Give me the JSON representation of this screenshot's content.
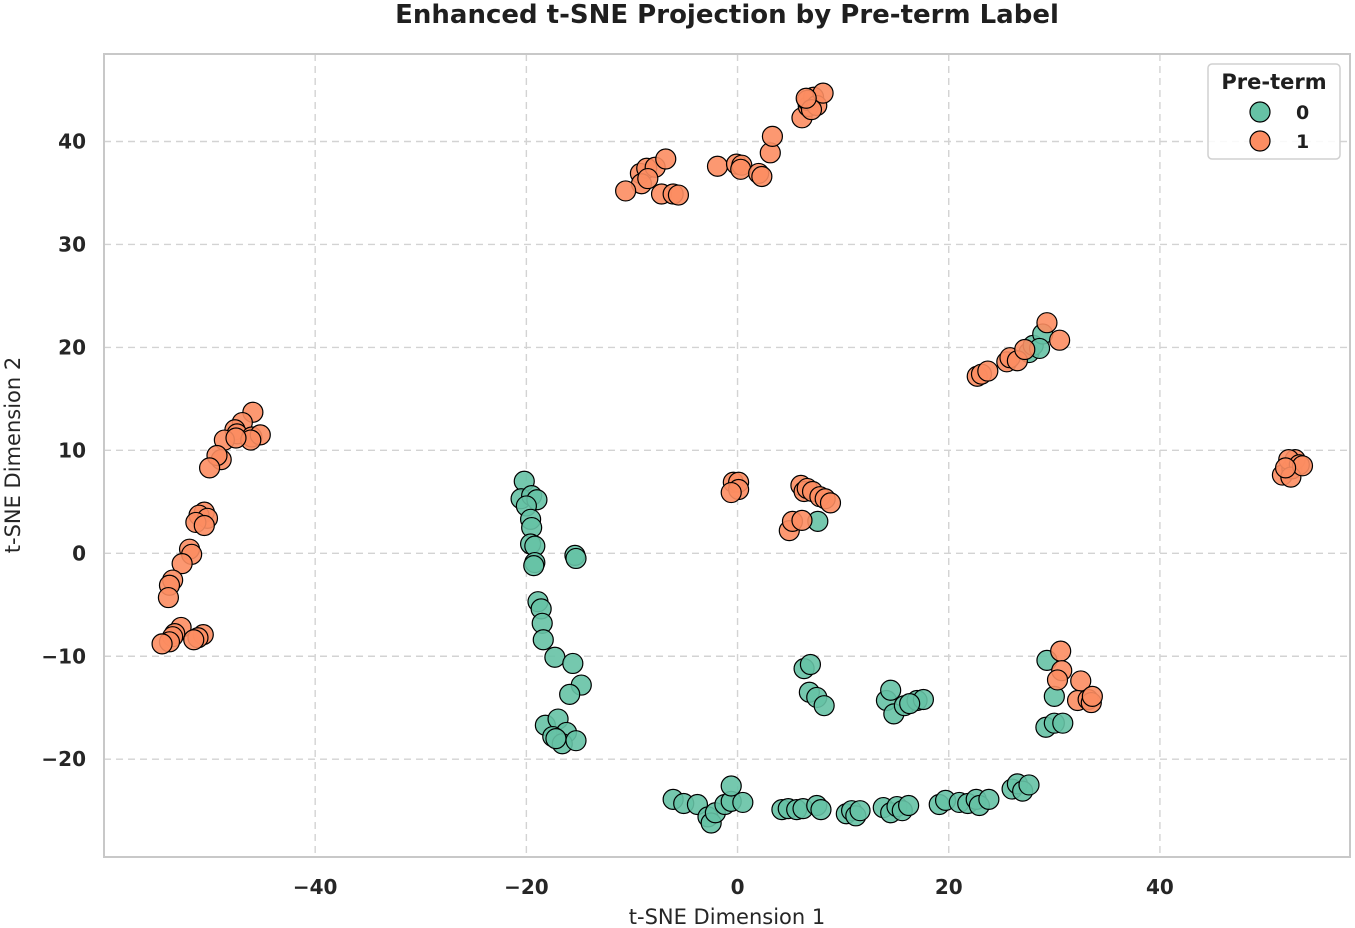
{
  "chart_data": {
    "type": "scatter",
    "title": "Enhanced t-SNE Projection by Pre-term Label",
    "xlabel": "t-SNE Dimension 1",
    "ylabel": "t-SNE Dimension 2",
    "xlim": [
      -60,
      58
    ],
    "ylim": [
      -29.5,
      48.5
    ],
    "xticks": [
      -40,
      -20,
      0,
      20,
      40
    ],
    "yticks": [
      -20,
      -10,
      0,
      10,
      20,
      30,
      40
    ],
    "grid": true,
    "legend": {
      "title": "Pre-term",
      "placement": "top-right"
    },
    "series": [
      {
        "name": "0",
        "color": "#66c2a5",
        "points": [
          [
            -20.2,
            7.0
          ],
          [
            -20.5,
            5.3
          ],
          [
            -19.5,
            5.6
          ],
          [
            -19.0,
            5.2
          ],
          [
            -20.0,
            4.6
          ],
          [
            -19.6,
            3.3
          ],
          [
            -19.5,
            2.5
          ],
          [
            -19.6,
            0.9
          ],
          [
            -19.2,
            0.7
          ],
          [
            -19.2,
            -0.9
          ],
          [
            -19.3,
            -1.2
          ],
          [
            -15.4,
            -0.2
          ],
          [
            -15.3,
            -0.5
          ],
          [
            -18.9,
            -4.7
          ],
          [
            -18.6,
            -5.4
          ],
          [
            -18.5,
            -6.8
          ],
          [
            -18.4,
            -8.4
          ],
          [
            -17.3,
            -10.1
          ],
          [
            -15.6,
            -10.7
          ],
          [
            -14.8,
            -12.8
          ],
          [
            -15.9,
            -13.7
          ],
          [
            -18.2,
            -16.7
          ],
          [
            -17.0,
            -16.1
          ],
          [
            -16.2,
            -17.4
          ],
          [
            -17.5,
            -17.8
          ],
          [
            -16.6,
            -18.5
          ],
          [
            -15.3,
            -18.2
          ],
          [
            -17.2,
            -18.0
          ],
          [
            6.3,
            -11.2
          ],
          [
            6.9,
            -10.8
          ],
          [
            6.8,
            -13.5
          ],
          [
            7.5,
            -14.0
          ],
          [
            8.2,
            -14.8
          ],
          [
            14.1,
            -14.3
          ],
          [
            14.5,
            -13.3
          ],
          [
            14.8,
            -15.6
          ],
          [
            15.8,
            -14.8
          ],
          [
            17.0,
            -14.3
          ],
          [
            17.6,
            -14.2
          ],
          [
            16.3,
            -14.6
          ],
          [
            7.6,
            3.1
          ],
          [
            -6.1,
            -23.9
          ],
          [
            -5.1,
            -24.3
          ],
          [
            -3.8,
            -24.4
          ],
          [
            -2.8,
            -25.6
          ],
          [
            -2.5,
            -26.2
          ],
          [
            -2.1,
            -25.2
          ],
          [
            -1.2,
            -24.4
          ],
          [
            -0.6,
            -24.1
          ],
          [
            -0.6,
            -22.6
          ],
          [
            0.5,
            -24.2
          ],
          [
            4.2,
            -24.9
          ],
          [
            4.8,
            -24.8
          ],
          [
            5.6,
            -24.9
          ],
          [
            6.2,
            -24.8
          ],
          [
            7.5,
            -24.5
          ],
          [
            7.9,
            -24.9
          ],
          [
            10.3,
            -25.3
          ],
          [
            10.8,
            -25.0
          ],
          [
            11.2,
            -25.5
          ],
          [
            11.6,
            -25.0
          ],
          [
            13.8,
            -24.7
          ],
          [
            14.5,
            -25.2
          ],
          [
            15.1,
            -24.6
          ],
          [
            15.6,
            -25.0
          ],
          [
            16.2,
            -24.5
          ],
          [
            19.1,
            -24.4
          ],
          [
            19.7,
            -24.0
          ],
          [
            21.0,
            -24.2
          ],
          [
            21.8,
            -24.3
          ],
          [
            22.6,
            -23.9
          ],
          [
            22.9,
            -24.5
          ],
          [
            23.8,
            -23.9
          ],
          [
            26.0,
            -22.9
          ],
          [
            26.5,
            -22.4
          ],
          [
            27.0,
            -23.1
          ],
          [
            27.6,
            -22.5
          ],
          [
            29.3,
            -10.4
          ],
          [
            29.2,
            -16.9
          ],
          [
            30.0,
            -16.5
          ],
          [
            30.0,
            -13.9
          ],
          [
            30.8,
            -16.5
          ],
          [
            27.6,
            19.5
          ],
          [
            28.0,
            20.2
          ],
          [
            28.9,
            21.3
          ],
          [
            28.6,
            19.9
          ]
        ]
      },
      {
        "name": "1",
        "color": "#fc8d62",
        "points": [
          [
            -45.9,
            13.7
          ],
          [
            -46.9,
            12.7
          ],
          [
            -47.6,
            12.0
          ],
          [
            -47.4,
            11.6
          ],
          [
            -48.6,
            11.0
          ],
          [
            -46.0,
            11.3
          ],
          [
            -45.2,
            11.5
          ],
          [
            -46.1,
            11.0
          ],
          [
            -47.5,
            11.2
          ],
          [
            -48.9,
            9.1
          ],
          [
            -49.3,
            9.5
          ],
          [
            -50.0,
            8.3
          ],
          [
            -50.5,
            4.0
          ],
          [
            -51.0,
            3.7
          ],
          [
            -50.2,
            3.4
          ],
          [
            -51.3,
            3.0
          ],
          [
            -50.5,
            2.7
          ],
          [
            -51.9,
            0.4
          ],
          [
            -51.7,
            -0.1
          ],
          [
            -52.6,
            -1.0
          ],
          [
            -53.5,
            -2.6
          ],
          [
            -53.8,
            -3.1
          ],
          [
            -53.9,
            -4.3
          ],
          [
            -52.7,
            -7.2
          ],
          [
            -53.3,
            -7.8
          ],
          [
            -53.5,
            -8.1
          ],
          [
            -53.8,
            -8.6
          ],
          [
            -54.5,
            -8.8
          ],
          [
            -50.6,
            -7.9
          ],
          [
            -51.1,
            -8.2
          ],
          [
            -51.5,
            -8.4
          ],
          [
            -9.2,
            36.9
          ],
          [
            -8.6,
            37.4
          ],
          [
            -7.8,
            37.5
          ],
          [
            -9.1,
            35.9
          ],
          [
            -8.5,
            36.4
          ],
          [
            -10.6,
            35.2
          ],
          [
            -7.2,
            34.9
          ],
          [
            -6.1,
            34.9
          ],
          [
            -5.6,
            34.8
          ],
          [
            -6.8,
            38.3
          ],
          [
            -1.9,
            37.6
          ],
          [
            -0.1,
            37.8
          ],
          [
            0.4,
            37.7
          ],
          [
            0.3,
            37.3
          ],
          [
            2.0,
            36.9
          ],
          [
            2.3,
            36.6
          ],
          [
            3.1,
            38.9
          ],
          [
            3.3,
            40.5
          ],
          [
            6.1,
            42.3
          ],
          [
            6.7,
            43.4
          ],
          [
            7.2,
            44.3
          ],
          [
            6.6,
            44.0
          ],
          [
            7.5,
            43.5
          ],
          [
            8.1,
            44.7
          ],
          [
            7.0,
            43.1
          ],
          [
            6.5,
            44.2
          ],
          [
            29.3,
            22.4
          ],
          [
            30.5,
            20.7
          ],
          [
            22.7,
            17.2
          ],
          [
            23.1,
            17.4
          ],
          [
            23.7,
            17.7
          ],
          [
            25.5,
            18.6
          ],
          [
            25.8,
            19.0
          ],
          [
            26.5,
            18.7
          ],
          [
            27.2,
            19.8
          ],
          [
            -0.4,
            6.9
          ],
          [
            0.1,
            6.9
          ],
          [
            0.1,
            6.2
          ],
          [
            -0.6,
            5.9
          ],
          [
            4.9,
            2.2
          ],
          [
            5.2,
            3.1
          ],
          [
            6.1,
            3.2
          ],
          [
            6.0,
            6.6
          ],
          [
            6.3,
            6.0
          ],
          [
            6.6,
            6.3
          ],
          [
            7.1,
            6.0
          ],
          [
            7.8,
            5.5
          ],
          [
            8.3,
            5.3
          ],
          [
            8.8,
            4.9
          ],
          [
            30.6,
            -9.5
          ],
          [
            30.7,
            -11.4
          ],
          [
            30.3,
            -12.3
          ],
          [
            32.5,
            -12.4
          ],
          [
            32.2,
            -14.3
          ],
          [
            33.2,
            -14.2
          ],
          [
            33.5,
            -14.5
          ],
          [
            33.6,
            -13.9
          ],
          [
            51.6,
            7.6
          ],
          [
            52.5,
            8.2
          ],
          [
            52.8,
            9.1
          ],
          [
            52.2,
            9.1
          ],
          [
            53.2,
            8.6
          ],
          [
            52.4,
            7.4
          ],
          [
            53.5,
            8.5
          ],
          [
            51.9,
            8.3
          ]
        ]
      }
    ]
  }
}
